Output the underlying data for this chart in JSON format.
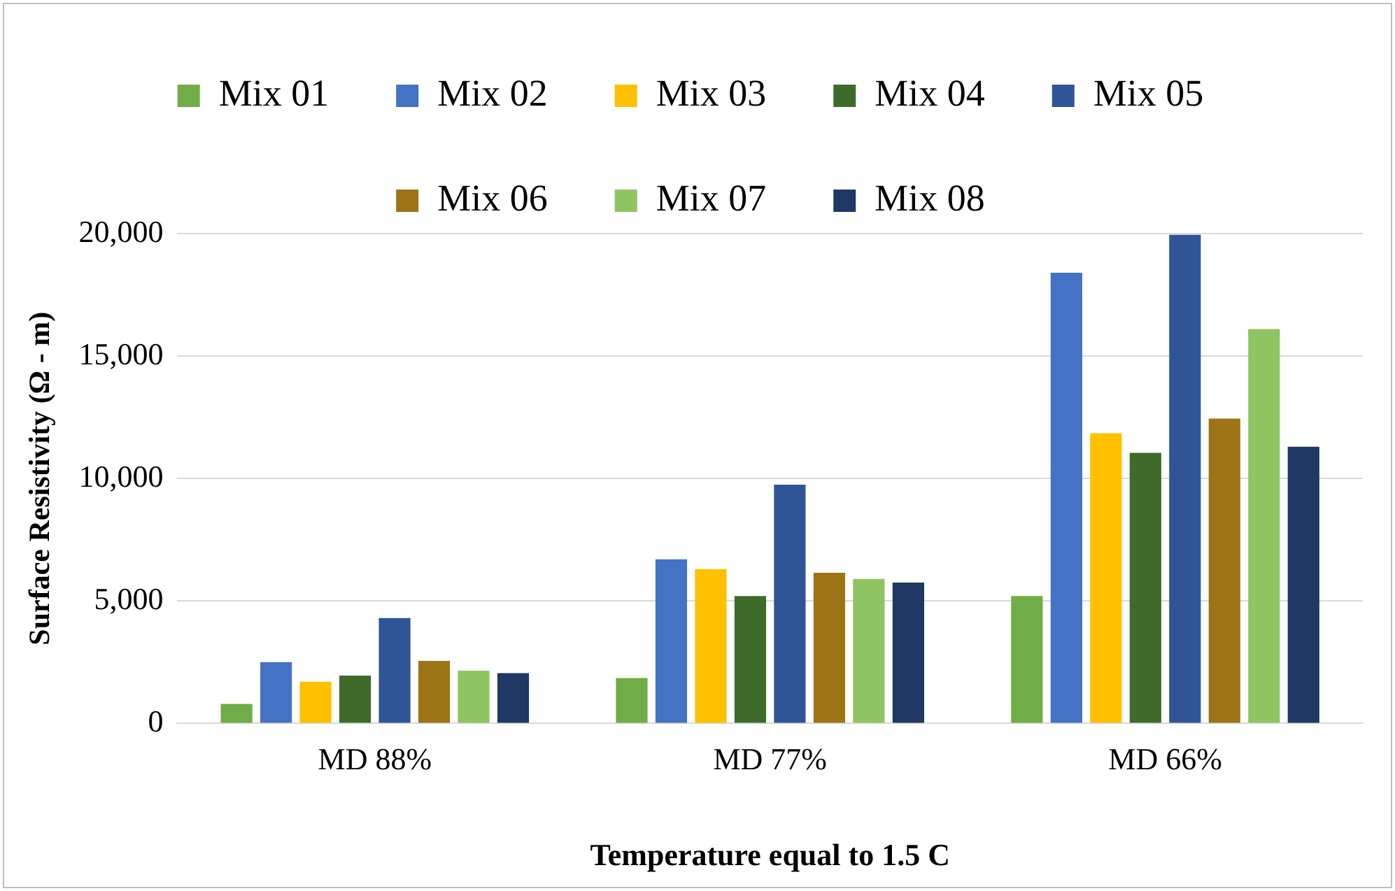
{
  "chart_data": {
    "type": "bar",
    "xlabel": "Temperature equal to 1.5 C",
    "ylabel": "Surface Resistivity (Ω - m)",
    "categories": [
      "MD 88%",
      "MD 77%",
      "MD 66%"
    ],
    "series": [
      {
        "name": "Mix 01",
        "color": "#70ad47",
        "values": [
          800,
          1850,
          5200
        ]
      },
      {
        "name": "Mix 02",
        "color": "#4472c4",
        "values": [
          2500,
          6700,
          18400
        ]
      },
      {
        "name": "Mix 03",
        "color": "#ffc000",
        "values": [
          1700,
          6300,
          11850
        ]
      },
      {
        "name": "Mix 04",
        "color": "#3f6b2a",
        "values": [
          1950,
          5200,
          11050
        ]
      },
      {
        "name": "Mix 05",
        "color": "#2f5597",
        "values": [
          4300,
          9750,
          19950
        ]
      },
      {
        "name": "Mix 06",
        "color": "#9c7416",
        "values": [
          2550,
          6150,
          12450
        ]
      },
      {
        "name": "Mix 07",
        "color": "#8fc462",
        "values": [
          2150,
          5900,
          16100
        ]
      },
      {
        "name": "Mix 08",
        "color": "#1f3864",
        "values": [
          2050,
          5750,
          11300
        ]
      }
    ],
    "ylim": [
      0,
      20000
    ],
    "yticks": [
      {
        "value": 0,
        "label": "0"
      },
      {
        "value": 5000,
        "label": "5,000"
      },
      {
        "value": 10000,
        "label": "10,000"
      },
      {
        "value": 15000,
        "label": "15,000"
      },
      {
        "value": 20000,
        "label": "20,000"
      }
    ],
    "grid": "y",
    "legend": "top"
  }
}
